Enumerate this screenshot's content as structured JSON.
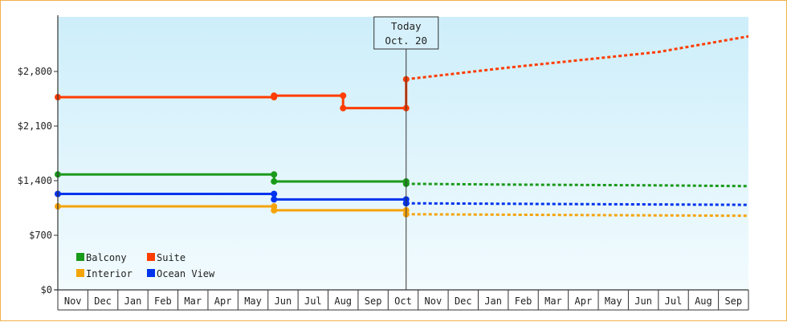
{
  "chart_data": {
    "type": "line",
    "title": "",
    "xlabel": "",
    "ylabel": "",
    "ylim": [
      0,
      3500
    ],
    "y_ticks": [
      0,
      700,
      1400,
      2100,
      2800
    ],
    "y_tick_labels": [
      "$0",
      "$700",
      "$1,400",
      "$2,100",
      "$2,800"
    ],
    "x_range_months": [
      0,
      23
    ],
    "x_tick_labels": [
      "Nov",
      "Dec",
      "Jan",
      "Feb",
      "Mar",
      "Apr",
      "May",
      "Jun",
      "Jul",
      "Aug",
      "Sep",
      "Oct",
      "Nov",
      "Dec",
      "Jan",
      "Feb",
      "Mar",
      "Apr",
      "May",
      "Jun",
      "Jul",
      "Aug",
      "Sep"
    ],
    "today": {
      "line1": "Today",
      "line2": "Oct. 20",
      "x": 11.6
    },
    "grid": false,
    "background_gradient": [
      "#cdeefa",
      "#f2fbfe"
    ],
    "legend": {
      "placement": "bottom-left",
      "entries": [
        {
          "name": "Balcony",
          "color": "#1a9a1a"
        },
        {
          "name": "Suite",
          "color": "#ff3d00"
        },
        {
          "name": "Interior",
          "color": "#f5a40a"
        },
        {
          "name": "Ocean View",
          "color": "#0033ee"
        }
      ]
    },
    "series": [
      {
        "name": "Balcony",
        "color": "#1a9a1a",
        "history": [
          [
            0,
            1480
          ],
          [
            7.2,
            1480
          ],
          [
            7.2,
            1390
          ],
          [
            11.6,
            1390
          ],
          [
            11.6,
            1360
          ]
        ],
        "forecast": [
          [
            11.6,
            1360
          ],
          [
            15,
            1350
          ],
          [
            20,
            1340
          ],
          [
            23,
            1330
          ]
        ],
        "markers": [
          [
            0,
            1480
          ],
          [
            7.2,
            1480
          ],
          [
            7.2,
            1390
          ],
          [
            11.6,
            1390
          ],
          [
            11.6,
            1360
          ]
        ]
      },
      {
        "name": "Suite",
        "color": "#ff3d00",
        "history": [
          [
            0,
            2470
          ],
          [
            7.2,
            2470
          ],
          [
            7.2,
            2490
          ],
          [
            9.5,
            2490
          ],
          [
            9.5,
            2330
          ],
          [
            11.6,
            2330
          ],
          [
            11.6,
            2700
          ]
        ],
        "forecast": [
          [
            11.6,
            2700
          ],
          [
            15,
            2850
          ],
          [
            20,
            3050
          ],
          [
            23,
            3250
          ]
        ],
        "markers": [
          [
            0,
            2470
          ],
          [
            7.2,
            2470
          ],
          [
            7.2,
            2490
          ],
          [
            9.5,
            2490
          ],
          [
            9.5,
            2330
          ],
          [
            11.6,
            2330
          ],
          [
            11.6,
            2700
          ]
        ]
      },
      {
        "name": "Interior",
        "color": "#f5a40a",
        "history": [
          [
            0,
            1070
          ],
          [
            7.2,
            1070
          ],
          [
            7.2,
            1020
          ],
          [
            11.6,
            1020
          ],
          [
            11.6,
            970
          ]
        ],
        "forecast": [
          [
            11.6,
            970
          ],
          [
            17,
            960
          ],
          [
            23,
            950
          ]
        ],
        "markers": [
          [
            0,
            1070
          ],
          [
            7.2,
            1070
          ],
          [
            7.2,
            1020
          ],
          [
            11.6,
            1020
          ],
          [
            11.6,
            970
          ]
        ]
      },
      {
        "name": "Ocean View",
        "color": "#0033ee",
        "history": [
          [
            0,
            1230
          ],
          [
            7.2,
            1230
          ],
          [
            7.2,
            1160
          ],
          [
            11.6,
            1160
          ],
          [
            11.6,
            1110
          ]
        ],
        "forecast": [
          [
            11.6,
            1110
          ],
          [
            17,
            1100
          ],
          [
            23,
            1090
          ]
        ],
        "markers": [
          [
            0,
            1230
          ],
          [
            7.2,
            1230
          ],
          [
            7.2,
            1160
          ],
          [
            11.6,
            1160
          ],
          [
            11.6,
            1110
          ]
        ]
      }
    ]
  }
}
